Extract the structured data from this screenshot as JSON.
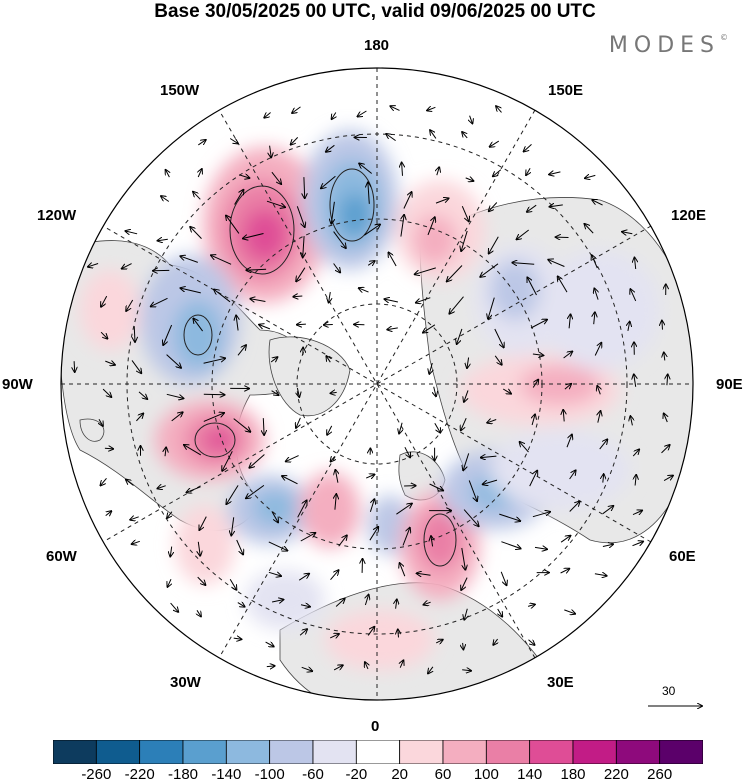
{
  "title": "Base 30/05/2025 00 UTC, valid 09/06/2025 00 UTC",
  "brand": "MODES",
  "brand_mark": "©",
  "longitude_labels": {
    "lon_180": "180",
    "lon_150e": "150E",
    "lon_120e": "120E",
    "lon_90e": "90E",
    "lon_60e": "60E",
    "lon_30e": "30E",
    "lon_0": "0",
    "lon_30w": "30W",
    "lon_60w": "60W",
    "lon_90w": "90W",
    "lon_120w": "120W",
    "lon_150w": "150W"
  },
  "reference_vector": {
    "value": "30"
  },
  "colorbar": {
    "ticks": [
      "-260",
      "-220",
      "-180",
      "-140",
      "-100",
      "-60",
      "-20",
      "20",
      "60",
      "100",
      "140",
      "180",
      "220",
      "260"
    ],
    "colors": [
      "#0d3b5e",
      "#0f5c8f",
      "#2c7fb8",
      "#5a9fcf",
      "#8db9df",
      "#bcc7e6",
      "#e3e3f2",
      "#ffffff",
      "#fbd7dc",
      "#f4aec0",
      "#ea7fa6",
      "#df4d96",
      "#c21c86",
      "#8e0a7c",
      "#5b006a"
    ]
  },
  "land_color": "#e8e8e8",
  "ocean_color": "#ffffff"
}
